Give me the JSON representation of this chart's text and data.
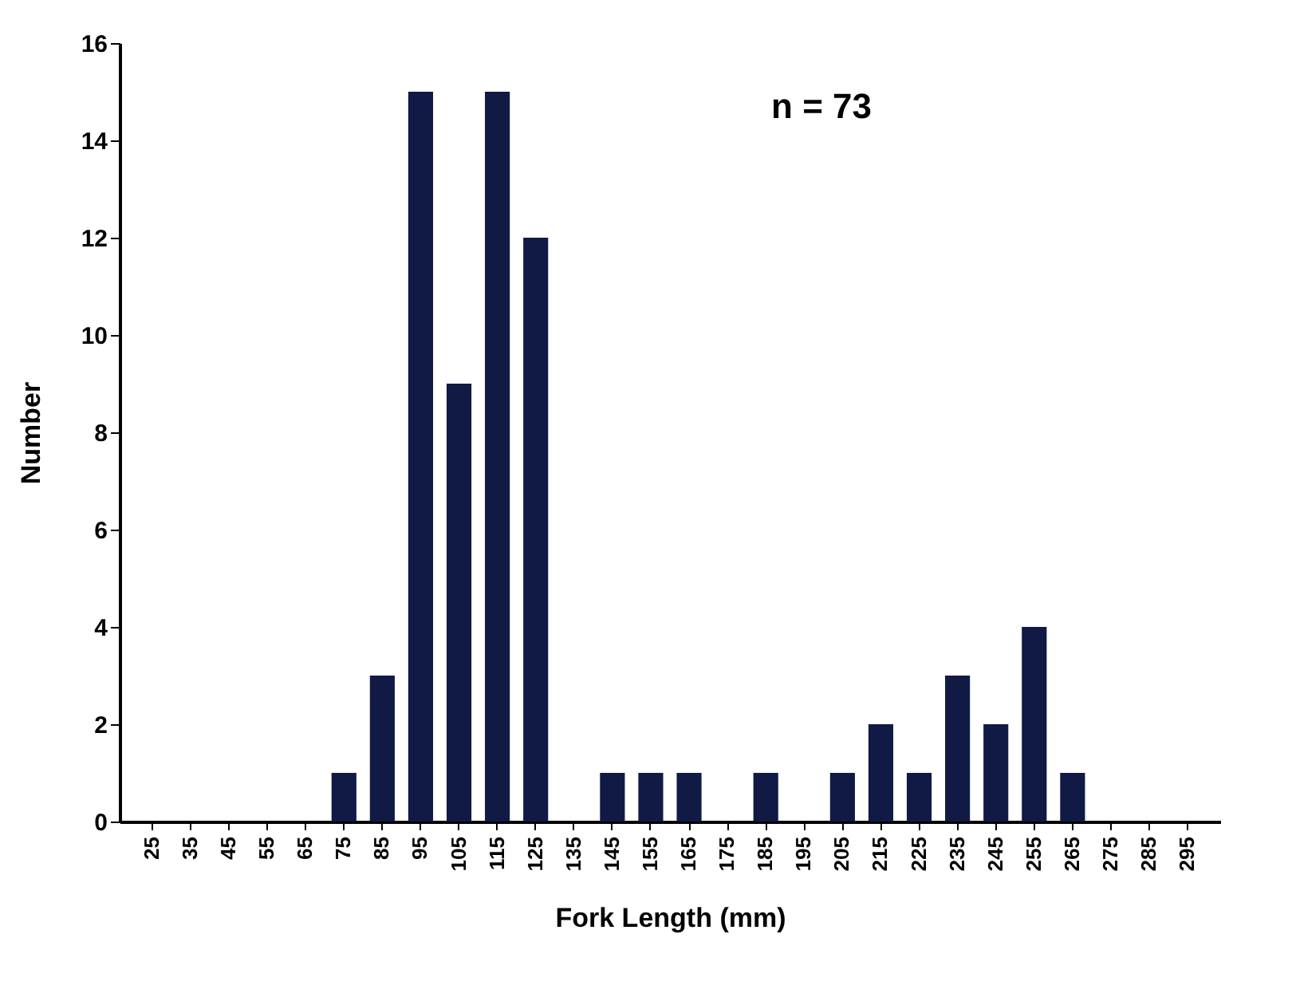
{
  "chart_data": {
    "type": "bar",
    "xlabel": "Fork Length (mm)",
    "ylabel": "Number",
    "categories": [
      "25",
      "35",
      "45",
      "55",
      "65",
      "75",
      "85",
      "95",
      "105",
      "115",
      "125",
      "135",
      "145",
      "155",
      "165",
      "175",
      "185",
      "195",
      "205",
      "215",
      "225",
      "235",
      "245",
      "255",
      "265",
      "275",
      "285",
      "295"
    ],
    "values": [
      0,
      0,
      0,
      0,
      0,
      1,
      3,
      15,
      9,
      15,
      12,
      0,
      1,
      1,
      1,
      0,
      1,
      0,
      1,
      2,
      1,
      3,
      2,
      4,
      1,
      0,
      0,
      0
    ],
    "color": "#101a45",
    "ylim": [
      0,
      16
    ],
    "yticks": [
      0,
      2,
      4,
      6,
      8,
      10,
      12,
      14,
      16
    ],
    "grid": false,
    "annotations": [
      "n = 73"
    ]
  }
}
